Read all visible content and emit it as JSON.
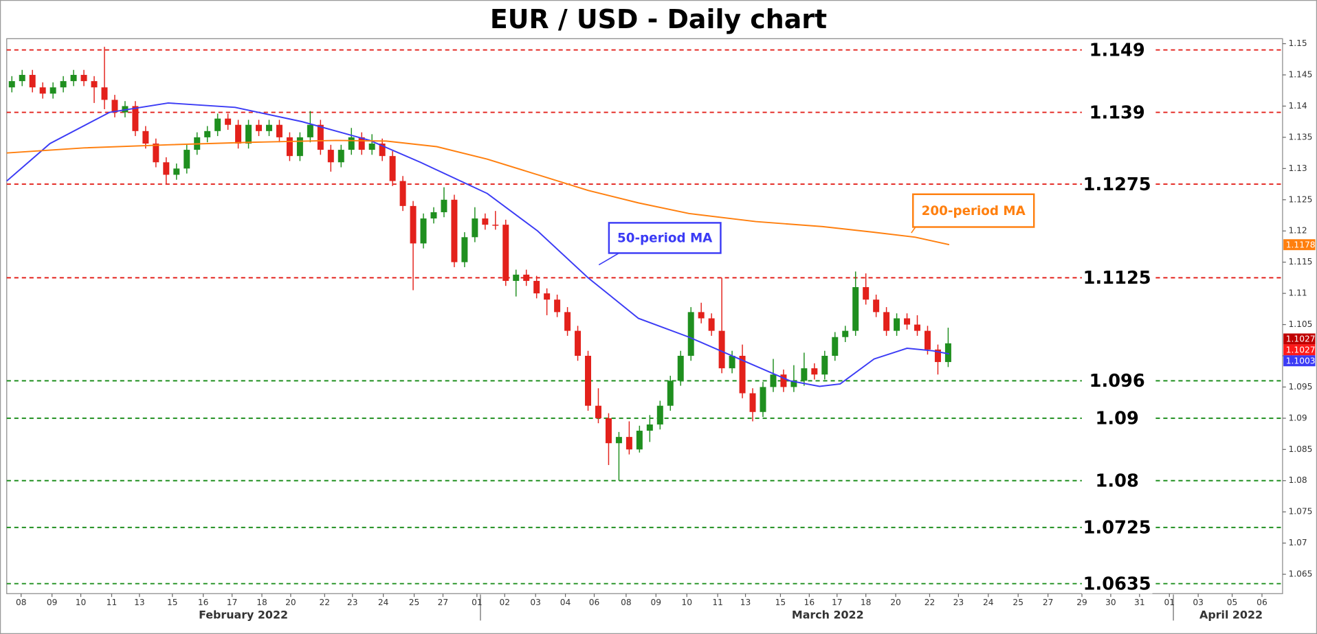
{
  "chart_data": {
    "type": "candlestick",
    "title": "EUR / USD - Daily chart",
    "xlim": [
      0,
      124
    ],
    "ylim": [
      1.0619,
      1.1508
    ],
    "yticks": [
      1.065,
      1.07,
      1.075,
      1.08,
      1.085,
      1.09,
      1.095,
      1.1,
      1.105,
      1.11,
      1.115,
      1.12,
      1.125,
      1.13,
      1.135,
      1.14,
      1.145,
      1.15
    ],
    "xticks": [
      {
        "value": 1.4,
        "label": "08"
      },
      {
        "value": 4.4,
        "label": "09"
      },
      {
        "value": 7.2,
        "label": "10"
      },
      {
        "value": 10.2,
        "label": "11"
      },
      {
        "value": 12.9,
        "label": "13"
      },
      {
        "value": 16.1,
        "label": "15"
      },
      {
        "value": 19.1,
        "label": "16"
      },
      {
        "value": 21.9,
        "label": "17"
      },
      {
        "value": 24.8,
        "label": "18"
      },
      {
        "value": 27.6,
        "label": "20"
      },
      {
        "value": 30.9,
        "label": "22"
      },
      {
        "value": 33.6,
        "label": "23"
      },
      {
        "value": 36.6,
        "label": "24"
      },
      {
        "value": 39.6,
        "label": "25"
      },
      {
        "value": 42.4,
        "label": "27"
      },
      {
        "value": 45.7,
        "label": "01"
      },
      {
        "value": 48.4,
        "label": "02"
      },
      {
        "value": 51.4,
        "label": "03"
      },
      {
        "value": 54.3,
        "label": "04"
      },
      {
        "value": 57.1,
        "label": "06"
      },
      {
        "value": 60.2,
        "label": "08"
      },
      {
        "value": 63.1,
        "label": "09"
      },
      {
        "value": 66.1,
        "label": "10"
      },
      {
        "value": 69.1,
        "label": "11"
      },
      {
        "value": 71.8,
        "label": "13"
      },
      {
        "value": 75.2,
        "label": "15"
      },
      {
        "value": 78.0,
        "label": "16"
      },
      {
        "value": 80.7,
        "label": "17"
      },
      {
        "value": 83.5,
        "label": "18"
      },
      {
        "value": 86.4,
        "label": "20"
      },
      {
        "value": 89.7,
        "label": "22"
      },
      {
        "value": 92.5,
        "label": "23"
      },
      {
        "value": 95.4,
        "label": "24"
      },
      {
        "value": 98.3,
        "label": "25"
      },
      {
        "value": 101.2,
        "label": "27"
      },
      {
        "value": 104.5,
        "label": "29"
      },
      {
        "value": 107.3,
        "label": "30"
      },
      {
        "value": 110.1,
        "label": "31"
      },
      {
        "value": 113.0,
        "label": "01"
      },
      {
        "value": 115.8,
        "label": "03"
      },
      {
        "value": 119.1,
        "label": "05"
      },
      {
        "value": 122.0,
        "label": "06"
      }
    ],
    "x_groups": [
      {
        "value": 23,
        "label": "February 2022"
      },
      {
        "value": 79.8,
        "label": "March 2022"
      },
      {
        "value": 119,
        "label": "April 2022"
      }
    ],
    "up_color": "#1f8f1f",
    "down_color": "#e3211b",
    "candles": {
      "x": [
        0.5,
        1.5,
        2.5,
        3.5,
        4.5,
        5.5,
        6.5,
        7.5,
        8.5,
        9.5,
        10.5,
        11.5,
        12.5,
        13.5,
        14.5,
        15.5,
        16.5,
        17.5,
        18.5,
        19.5,
        20.5,
        21.5,
        22.5,
        23.5,
        24.5,
        25.5,
        26.5,
        27.5,
        28.5,
        29.5,
        30.5,
        31.5,
        32.5,
        33.5,
        34.5,
        35.5,
        36.5,
        37.5,
        38.5,
        39.5,
        40.5,
        41.5,
        42.5,
        43.5,
        44.5,
        45.5,
        46.5,
        47.5,
        48.5,
        49.5,
        50.5,
        51.5,
        52.5,
        53.5,
        54.5,
        55.5,
        56.5,
        57.5,
        58.5,
        59.5,
        60.5,
        61.5,
        62.5,
        63.5,
        64.5,
        65.5,
        66.5,
        67.5,
        68.5,
        69.5,
        70.5,
        71.5,
        72.5,
        73.5,
        74.5,
        75.5,
        76.5,
        77.5,
        78.5,
        79.5,
        80.5,
        81.5,
        82.5,
        83.5,
        84.5,
        85.5,
        86.5,
        87.5,
        88.5,
        89.5,
        90.5,
        91.5
      ],
      "open": [
        1.143,
        1.144,
        1.145,
        1.143,
        1.142,
        1.143,
        1.144,
        1.145,
        1.144,
        1.143,
        1.141,
        1.139,
        1.14,
        1.136,
        1.134,
        1.131,
        1.129,
        1.13,
        1.133,
        1.135,
        1.136,
        1.138,
        1.137,
        1.134,
        1.137,
        1.136,
        1.137,
        1.135,
        1.132,
        1.135,
        1.137,
        1.133,
        1.131,
        1.133,
        1.135,
        1.133,
        1.134,
        1.132,
        1.128,
        1.124,
        1.118,
        1.122,
        1.123,
        1.125,
        1.115,
        1.119,
        1.122,
        1.121,
        1.121,
        1.112,
        1.113,
        1.112,
        1.11,
        1.109,
        1.107,
        1.104,
        1.1,
        1.092,
        1.09,
        1.086,
        1.087,
        1.085,
        1.088,
        1.089,
        1.092,
        1.096,
        1.1,
        1.107,
        1.106,
        1.104,
        1.098,
        1.1,
        1.094,
        1.091,
        1.095,
        1.097,
        1.095,
        1.096,
        1.098,
        1.097,
        1.1,
        1.103,
        1.104,
        1.111,
        1.109,
        1.107,
        1.104,
        1.106,
        1.105,
        1.104,
        1.101,
        1.099
      ],
      "high": [
        1.1448,
        1.1458,
        1.1458,
        1.1438,
        1.1438,
        1.1448,
        1.1458,
        1.1458,
        1.1448,
        1.1495,
        1.1418,
        1.1408,
        1.1408,
        1.1368,
        1.1348,
        1.1318,
        1.1308,
        1.1338,
        1.1358,
        1.1368,
        1.1388,
        1.1388,
        1.1378,
        1.1378,
        1.1378,
        1.1378,
        1.1378,
        1.1358,
        1.1358,
        1.1392,
        1.1378,
        1.1338,
        1.1338,
        1.1365,
        1.1358,
        1.1355,
        1.1348,
        1.1328,
        1.1288,
        1.1248,
        1.1228,
        1.1238,
        1.127,
        1.1258,
        1.1198,
        1.1238,
        1.1228,
        1.1232,
        1.1218,
        1.1138,
        1.1138,
        1.1128,
        1.1108,
        1.1098,
        1.1078,
        1.1048,
        1.1008,
        1.0948,
        1.0908,
        1.0878,
        1.0895,
        1.0888,
        1.0905,
        1.0928,
        1.0968,
        1.1008,
        1.1078,
        1.1085,
        1.1068,
        1.1125,
        1.1008,
        1.1018,
        1.0948,
        1.0958,
        1.0995,
        1.0978,
        1.0985,
        1.1005,
        1.0988,
        1.1008,
        1.1038,
        1.1048,
        1.1135,
        1.1132,
        1.1098,
        1.1078,
        1.1068,
        1.1068,
        1.1065,
        1.1048,
        1.1018,
        1.1045
      ],
      "low": [
        1.1422,
        1.1432,
        1.1422,
        1.1412,
        1.1412,
        1.1422,
        1.1432,
        1.1432,
        1.1405,
        1.1395,
        1.1382,
        1.1382,
        1.1352,
        1.1332,
        1.1302,
        1.1275,
        1.1282,
        1.1292,
        1.1322,
        1.1342,
        1.1352,
        1.1362,
        1.1332,
        1.1332,
        1.1352,
        1.1352,
        1.1342,
        1.1312,
        1.1312,
        1.1342,
        1.1322,
        1.1295,
        1.1302,
        1.1322,
        1.1322,
        1.1322,
        1.1312,
        1.1272,
        1.1232,
        1.1105,
        1.1172,
        1.1212,
        1.1222,
        1.1142,
        1.1142,
        1.1182,
        1.1202,
        1.1202,
        1.1112,
        1.1095,
        1.1112,
        1.1092,
        1.1065,
        1.1062,
        1.1032,
        1.0992,
        1.0912,
        1.0892,
        1.0825,
        1.08,
        1.0842,
        1.0845,
        1.0862,
        1.0882,
        1.0912,
        1.0952,
        1.0992,
        1.1052,
        1.1032,
        1.0972,
        1.0972,
        1.0932,
        1.0895,
        1.0902,
        1.0942,
        1.0942,
        1.0942,
        1.0952,
        1.0962,
        1.0962,
        1.0992,
        1.1022,
        1.1032,
        1.1082,
        1.1062,
        1.1032,
        1.1032,
        1.1042,
        1.1032,
        1.1002,
        1.097,
        1.0982
      ],
      "close": [
        1.144,
        1.145,
        1.143,
        1.142,
        1.143,
        1.144,
        1.145,
        1.144,
        1.143,
        1.141,
        1.139,
        1.14,
        1.136,
        1.134,
        1.131,
        1.129,
        1.13,
        1.133,
        1.135,
        1.136,
        1.138,
        1.137,
        1.134,
        1.137,
        1.136,
        1.137,
        1.135,
        1.132,
        1.135,
        1.137,
        1.133,
        1.131,
        1.133,
        1.135,
        1.133,
        1.134,
        1.132,
        1.128,
        1.124,
        1.118,
        1.122,
        1.123,
        1.125,
        1.115,
        1.119,
        1.122,
        1.121,
        1.121,
        1.112,
        1.113,
        1.112,
        1.11,
        1.109,
        1.107,
        1.104,
        1.1,
        1.092,
        1.09,
        1.086,
        1.087,
        1.085,
        1.088,
        1.089,
        1.092,
        1.096,
        1.1,
        1.107,
        1.106,
        1.104,
        1.098,
        1.1,
        1.094,
        1.091,
        1.095,
        1.097,
        1.095,
        1.096,
        1.098,
        1.097,
        1.1,
        1.103,
        1.104,
        1.111,
        1.109,
        1.107,
        1.104,
        1.106,
        1.105,
        1.104,
        1.101,
        1.099,
        1.102
      ]
    },
    "ma": [
      {
        "name": "50-period MA",
        "color": "#3b3bf5",
        "x": [
          0,
          4.2,
          10,
          15.7,
          22.2,
          28.7,
          35.3,
          40.2,
          46.7,
          51.6,
          56.5,
          61.4,
          66.3,
          71.2,
          76.1,
          79,
          81,
          84.3,
          87.5,
          90,
          91.6
        ],
        "values": [
          1.128,
          1.134,
          1.139,
          1.1405,
          1.1398,
          1.1375,
          1.1345,
          1.131,
          1.126,
          1.12,
          1.1125,
          1.106,
          1.103,
          1.0995,
          1.096,
          1.0951,
          1.0955,
          1.0995,
          1.1012,
          1.1008,
          1.1003
        ]
      },
      {
        "name": "200-period MA",
        "color": "#ff7f0e",
        "x": [
          0,
          7.5,
          15.7,
          23.8,
          32,
          36.9,
          41.8,
          46.7,
          51.6,
          56.5,
          61.4,
          66.3,
          72.8,
          79.3,
          84.2,
          88.3,
          91.6
        ],
        "values": [
          1.1325,
          1.1333,
          1.1338,
          1.1342,
          1.1345,
          1.1344,
          1.1335,
          1.1315,
          1.129,
          1.1265,
          1.1245,
          1.1228,
          1.1215,
          1.1207,
          1.1198,
          1.119,
          1.1178
        ]
      }
    ],
    "levels": [
      {
        "value": 1.149,
        "color": "#e3211b"
      },
      {
        "value": 1.139,
        "color": "#e3211b"
      },
      {
        "value": 1.1275,
        "color": "#e3211b"
      },
      {
        "value": 1.1125,
        "color": "#e3211b"
      },
      {
        "value": 1.096,
        "color": "#1f8f1f"
      },
      {
        "value": 1.09,
        "color": "#1f8f1f"
      },
      {
        "value": 1.08,
        "color": "#1f8f1f"
      },
      {
        "value": 1.0725,
        "color": "#1f8f1f"
      },
      {
        "value": 1.0635,
        "color": "#1f8f1f"
      }
    ],
    "price_tags": [
      {
        "value": 1.1178,
        "color": "#ff7f0e"
      },
      {
        "value": 1.1027,
        "color": "#c00000"
      },
      {
        "value": 1.1027,
        "color": "#ff1a1a"
      },
      {
        "value": 1.1003,
        "color": "#3b3bf5"
      }
    ]
  }
}
